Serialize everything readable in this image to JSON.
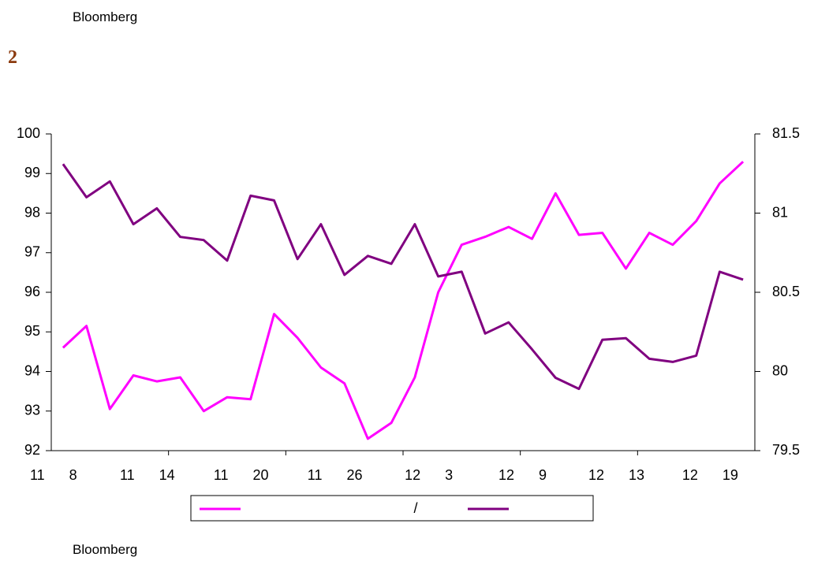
{
  "header": {
    "source": "Bloomberg",
    "figure_number": "2"
  },
  "chart_data": {
    "type": "line",
    "categories": [
      "11 8",
      null,
      null,
      null,
      "11 14",
      null,
      null,
      null,
      "11 20",
      null,
      null,
      null,
      "11 26",
      null,
      null,
      null,
      "12 3",
      null,
      null,
      null,
      "12 9",
      null,
      null,
      null,
      "12 13",
      null,
      null,
      null,
      "12 19",
      null
    ],
    "series": [
      {
        "name": "/",
        "color": "#ff00ff",
        "values": [
          94.6,
          95.15,
          93.05,
          93.9,
          93.75,
          93.85,
          93.0,
          93.35,
          93.3,
          95.45,
          94.85,
          94.1,
          93.7,
          92.3,
          92.7,
          93.85,
          96.0,
          97.2,
          97.4,
          97.65,
          97.35,
          98.5,
          97.45,
          97.5,
          96.6,
          97.5,
          97.2,
          97.8,
          98.75,
          99.3
        ]
      },
      {
        "color": "#800080",
        "axis": "y2",
        "values": [
          81.31,
          81.1,
          81.2,
          80.93,
          81.03,
          80.85,
          80.83,
          80.7,
          81.11,
          81.08,
          80.71,
          80.93,
          80.61,
          80.73,
          80.68,
          80.93,
          80.6,
          80.63,
          80.24,
          80.31,
          80.14,
          79.96,
          79.89,
          80.2,
          80.21,
          80.08,
          80.06,
          80.1,
          80.63,
          80.58
        ]
      }
    ],
    "ylim": [
      92,
      100
    ],
    "yticks": [
      92,
      93,
      94,
      95,
      96,
      97,
      98,
      99,
      100
    ],
    "y2lim": [
      79.5,
      81.5
    ],
    "y2ticks": [
      79.5,
      80,
      80.5,
      81,
      81.5
    ],
    "grid": false,
    "legend": "bottom"
  },
  "footer": {
    "source": "Bloomberg"
  }
}
